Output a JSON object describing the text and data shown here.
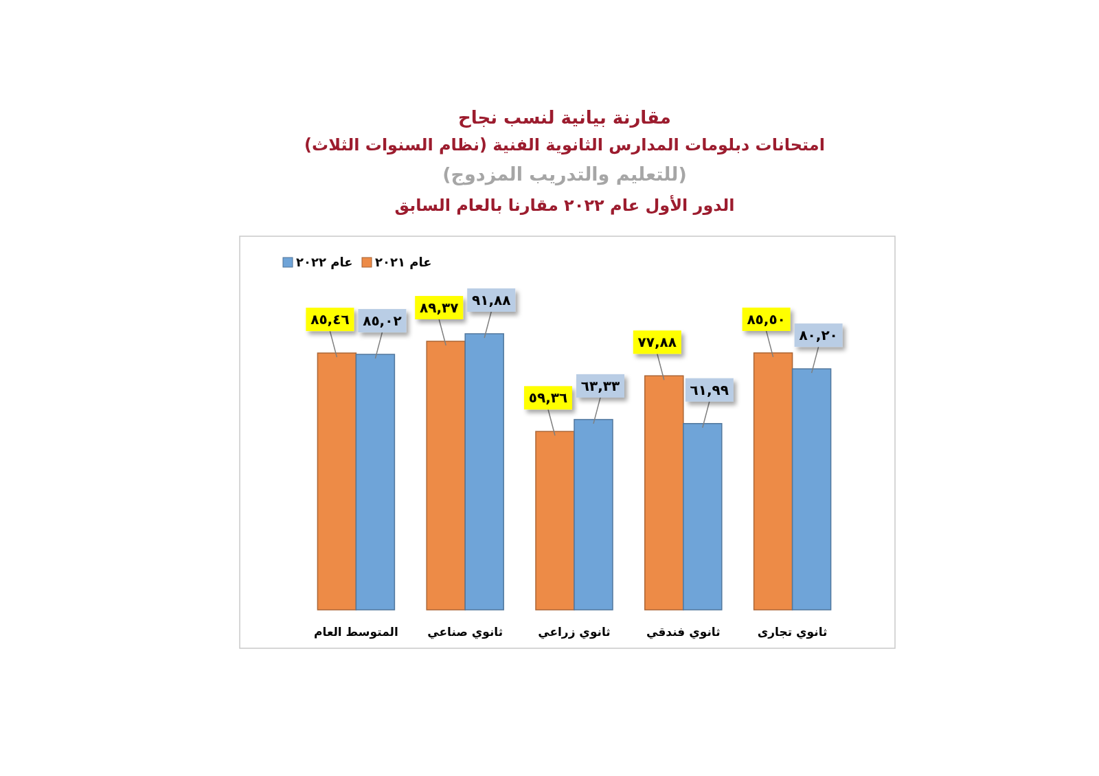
{
  "chart_data": {
    "type": "bar",
    "title": "مقارنة بيانية لنسب نجاح",
    "subtitle": "امتحانات دبلومات المدارس الثانوية الفنية (نظام السنوات الثلاث)\n(للتعليم والتدريب المزدوج)\nالدور الأول عام ٢٠٢٢ مقارنا بالعام السابق",
    "categories": [
      "المتوسط العام",
      "ثانوي صناعي",
      "ثانوي زراعي",
      "ثانوي فندقي",
      "ثانوي تجارى"
    ],
    "series": [
      {
        "name": "عام ٢٠٢١",
        "color": "#ed8b47",
        "values": [
          85.46,
          89.37,
          59.36,
          77.88,
          85.5
        ],
        "value_labels": [
          "٨٥,٤٦",
          "٨٩,٣٧",
          "٥٩,٣٦",
          "٧٧,٨٨",
          "٨٥,٥٠"
        ]
      },
      {
        "name": "عام ٢٠٢٢",
        "color": "#6fa4d8",
        "values": [
          85.02,
          91.88,
          63.33,
          61.99,
          80.2
        ],
        "value_labels": [
          "٨٥,٠٢",
          "٩١,٨٨",
          "٦٣,٣٣",
          "٦١,٩٩",
          "٨٠,٢٠"
        ]
      }
    ],
    "legend": "top left"
  }
}
